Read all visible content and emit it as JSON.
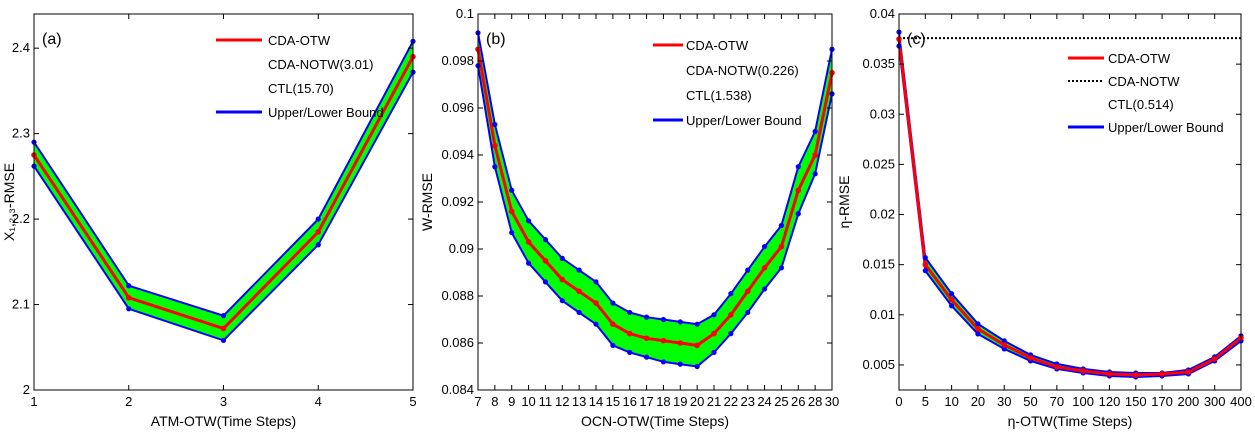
{
  "colors": {
    "main": "#ff0000",
    "bound": "#0000ff",
    "fill": "#00ff00",
    "ref": "#000000"
  },
  "chart_data": [
    {
      "type": "line",
      "panel_label": "(a)",
      "xlabel": "ATM-OTW(Time Steps)",
      "ylabel": "X₁,₂,₃-RMSE",
      "x_ticks": [
        "1",
        "2",
        "3",
        "4",
        "5"
      ],
      "y_ticks": [
        "2",
        "2.1",
        "2.2",
        "2.3",
        "2.4"
      ],
      "ylim": [
        2.0,
        2.44
      ],
      "grid": false,
      "legend_position": "top-right",
      "legend": [
        {
          "label": "CDA-OTW",
          "marker": "line-red"
        },
        {
          "label": "CDA-NOTW(3.01)",
          "marker": "none"
        },
        {
          "label": "CTL(15.70)",
          "marker": "none"
        },
        {
          "label": "Upper/Lower Bound",
          "marker": "line-blue"
        }
      ],
      "series": [
        {
          "name": "CDA-OTW",
          "values": [
            2.275,
            2.108,
            2.072,
            2.185,
            2.39
          ]
        },
        {
          "name": "Upper/Lower Bound",
          "upper": [
            2.29,
            2.122,
            2.087,
            2.2,
            2.408
          ],
          "lower": [
            2.262,
            2.095,
            2.058,
            2.17,
            2.372
          ]
        }
      ]
    },
    {
      "type": "line",
      "panel_label": "(b)",
      "xlabel": "OCN-OTW(Time Steps)",
      "ylabel": "W-RMSE",
      "x_ticks": [
        "7",
        "8",
        "9",
        "10",
        "11",
        "12",
        "13",
        "14",
        "15",
        "16",
        "17",
        "18",
        "19",
        "20",
        "21",
        "22",
        "23",
        "24",
        "25",
        "26",
        "28",
        "30"
      ],
      "y_ticks": [
        "0.084",
        "0.086",
        "0.088",
        "0.09",
        "0.092",
        "0.094",
        "0.096",
        "0.098",
        "0.1"
      ],
      "ylim": [
        0.084,
        0.1
      ],
      "grid": false,
      "legend_position": "top-right",
      "legend": [
        {
          "label": "CDA-OTW",
          "marker": "line-red"
        },
        {
          "label": "CDA-NOTW(0.226)",
          "marker": "none"
        },
        {
          "label": "CTL(1.538)",
          "marker": "none"
        },
        {
          "label": "Upper/Lower Bound",
          "marker": "line-blue"
        }
      ],
      "series": [
        {
          "name": "CDA-OTW",
          "values": [
            0.0985,
            0.0944,
            0.0916,
            0.0903,
            0.0895,
            0.0887,
            0.0882,
            0.0877,
            0.0868,
            0.0864,
            0.0862,
            0.0861,
            0.086,
            0.0859,
            0.0864,
            0.0872,
            0.0882,
            0.0892,
            0.0901,
            0.0925,
            0.094,
            0.0975
          ]
        },
        {
          "name": "Upper/Lower Bound",
          "upper": [
            0.0992,
            0.0953,
            0.0925,
            0.0912,
            0.0904,
            0.0896,
            0.0891,
            0.0886,
            0.0877,
            0.0873,
            0.0871,
            0.087,
            0.0869,
            0.0868,
            0.0872,
            0.0881,
            0.0891,
            0.0901,
            0.091,
            0.0935,
            0.095,
            0.0985
          ],
          "lower": [
            0.0978,
            0.0935,
            0.0907,
            0.0894,
            0.0886,
            0.0878,
            0.0873,
            0.0868,
            0.0859,
            0.0856,
            0.0854,
            0.0852,
            0.0851,
            0.085,
            0.0856,
            0.0864,
            0.0873,
            0.0883,
            0.0892,
            0.0915,
            0.0932,
            0.0966
          ]
        }
      ]
    },
    {
      "type": "line",
      "panel_label": "(c)",
      "xlabel": "η-OTW(Time Steps)",
      "ylabel": "η-RMSE",
      "x_ticks": [
        "0",
        "5",
        "10",
        "20",
        "30",
        "50",
        "70",
        "100",
        "120",
        "150",
        "170",
        "200",
        "300",
        "400"
      ],
      "y_ticks": [
        "0.005",
        "0.01",
        "0.015",
        "0.02",
        "0.025",
        "0.03",
        "0.035",
        "0.04"
      ],
      "ylim": [
        0.0025,
        0.04
      ],
      "grid": false,
      "legend_position": "top-right",
      "legend": [
        {
          "label": "CDA-OTW",
          "marker": "line-red"
        },
        {
          "label": "CDA-NOTW",
          "marker": "dotted-black"
        },
        {
          "label": "CTL(0.514)",
          "marker": "none"
        },
        {
          "label": "Upper/Lower Bound",
          "marker": "line-blue"
        }
      ],
      "reference_line": {
        "name": "CDA-NOTW",
        "value": 0.0376
      },
      "series": [
        {
          "name": "CDA-OTW",
          "values": [
            0.0375,
            0.015,
            0.0115,
            0.0086,
            0.007,
            0.0057,
            0.0048,
            0.0044,
            0.0041,
            0.004,
            0.0041,
            0.0043,
            0.0056,
            0.0077
          ]
        },
        {
          "name": "Upper/Lower Bound",
          "upper": [
            0.0382,
            0.0157,
            0.0121,
            0.0091,
            0.0074,
            0.006,
            0.0051,
            0.0046,
            0.0043,
            0.0042,
            0.0042,
            0.0045,
            0.0058,
            0.0079
          ],
          "lower": [
            0.0368,
            0.0144,
            0.0109,
            0.0081,
            0.0066,
            0.0054,
            0.0046,
            0.0042,
            0.0039,
            0.0038,
            0.0039,
            0.0041,
            0.0054,
            0.0074
          ]
        }
      ]
    }
  ]
}
